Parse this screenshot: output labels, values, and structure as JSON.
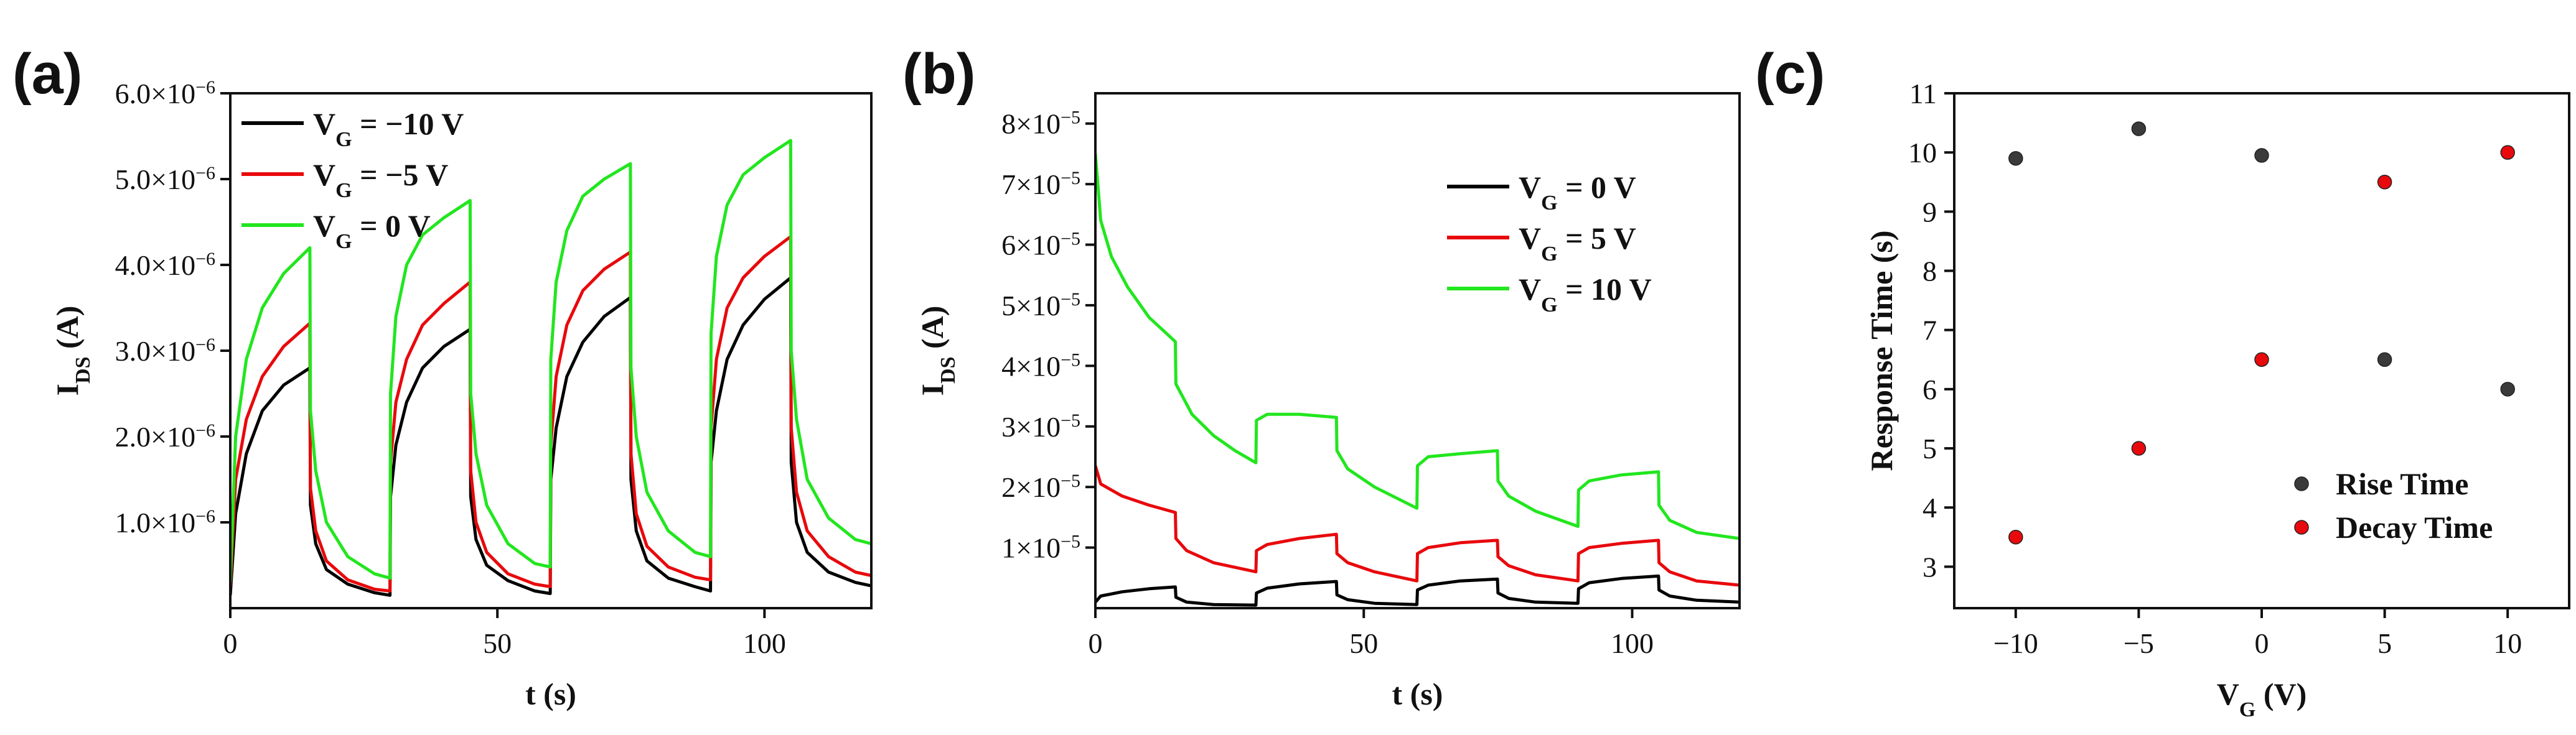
{
  "chart_data": [
    {
      "panel": "(a)",
      "type": "line",
      "xlabel": "t (s)",
      "ylabel": "IDS (A)",
      "ylabel_main": "I",
      "ylabel_sub": "DS",
      "ylabel_tail": " (A)",
      "xlim": [
        0,
        120
      ],
      "ylim": [
        0,
        6e-06
      ],
      "x_ticks": [
        0,
        50,
        100
      ],
      "x_tick_labels": [
        "0",
        "50",
        "100"
      ],
      "y_ticks": [
        1e-06,
        2e-06,
        3e-06,
        4e-06,
        5e-06,
        6e-06
      ],
      "y_tick_labels": [
        {
          "mant": "1.0×10",
          "exp": "−6"
        },
        {
          "mant": "2.0×10",
          "exp": "−6"
        },
        {
          "mant": "3.0×10",
          "exp": "−6"
        },
        {
          "mant": "4.0×10",
          "exp": "−6"
        },
        {
          "mant": "5.0×10",
          "exp": "−6"
        },
        {
          "mant": "6.0×10",
          "exp": "−6"
        }
      ],
      "legend_position": "top-left",
      "series": [
        {
          "name": "VG = −10 V",
          "label_main": "V",
          "label_sub": "G",
          "label_tail": " = −10 V",
          "color": "#000000",
          "x": [
            0,
            1,
            3,
            6,
            10,
            14.9,
            15,
            16,
            18,
            22,
            27,
            29.9,
            30,
            31,
            33,
            36,
            40,
            44.9,
            45,
            46,
            48,
            52,
            57,
            59.9,
            60,
            61,
            63,
            66,
            70,
            74.9,
            75,
            76,
            78,
            82,
            87,
            89.9,
            90,
            91,
            93,
            96,
            100,
            104.9,
            105,
            106,
            108,
            112,
            117,
            120
          ],
          "y": [
            1.5e-07,
            1.1e-06,
            1.8e-06,
            2.3e-06,
            2.6e-06,
            2.8e-06,
            1.2e-06,
            7.5e-07,
            4.5e-07,
            2.8e-07,
            1.8e-07,
            1.5e-07,
            1.3e-06,
            1.9e-06,
            2.4e-06,
            2.8e-06,
            3.05e-06,
            3.25e-06,
            1.3e-06,
            8e-07,
            5e-07,
            3.2e-07,
            2e-07,
            1.7e-07,
            1.5e-06,
            2.1e-06,
            2.7e-06,
            3.1e-06,
            3.4e-06,
            3.62e-06,
            1.5e-06,
            9e-07,
            5.5e-07,
            3.5e-07,
            2.5e-07,
            2e-07,
            1.7e-06,
            2.3e-06,
            2.9e-06,
            3.3e-06,
            3.6e-06,
            3.85e-06,
            1.7e-06,
            1e-06,
            6.5e-07,
            4.2e-07,
            3e-07,
            2.6e-07
          ]
        },
        {
          "name": "VG = −5 V",
          "label_main": "V",
          "label_sub": "G",
          "label_tail": " = −5 V",
          "color": "#e8090c",
          "x": [
            0,
            1,
            3,
            6,
            10,
            14.9,
            15,
            16,
            18,
            22,
            27,
            29.9,
            30,
            31,
            33,
            36,
            40,
            44.9,
            45,
            46,
            48,
            52,
            57,
            59.9,
            60,
            61,
            63,
            66,
            70,
            74.9,
            75,
            76,
            78,
            82,
            87,
            89.9,
            90,
            91,
            93,
            96,
            100,
            104.9,
            105,
            106,
            108,
            112,
            117,
            120
          ],
          "y": [
            2.5e-07,
            1.5e-06,
            2.2e-06,
            2.7e-06,
            3.05e-06,
            3.32e-06,
            1.4e-06,
            9e-07,
            5.5e-07,
            3.3e-07,
            2.2e-07,
            2e-07,
            1.7e-06,
            2.4e-06,
            2.9e-06,
            3.3e-06,
            3.55e-06,
            3.8e-06,
            1.6e-06,
            1e-06,
            6.5e-07,
            4e-07,
            2.8e-07,
            2.5e-07,
            1.9e-06,
            2.7e-06,
            3.3e-06,
            3.7e-06,
            3.95e-06,
            4.15e-06,
            1.8e-06,
            1.1e-06,
            7.2e-07,
            4.8e-07,
            3.6e-07,
            3.3e-07,
            2.1e-06,
            2.9e-06,
            3.5e-06,
            3.85e-06,
            4.1e-06,
            4.33e-06,
            2.1e-06,
            1.35e-06,
            9e-07,
            6e-07,
            4.2e-07,
            3.8e-07
          ]
        },
        {
          "name": "VG = 0 V",
          "label_main": "V",
          "label_sub": "G",
          "label_tail": " = 0 V",
          "color": "#22e61e",
          "x": [
            0,
            1,
            3,
            6,
            10,
            14.9,
            15,
            16,
            18,
            22,
            27,
            29.9,
            30,
            31,
            33,
            36,
            40,
            44.9,
            45,
            46,
            48,
            52,
            57,
            59.9,
            60,
            61,
            63,
            66,
            70,
            74.9,
            75,
            76,
            78,
            82,
            87,
            89.9,
            90,
            91,
            93,
            96,
            100,
            104.9,
            105,
            106,
            108,
            112,
            117,
            120
          ],
          "y": [
            3e-07,
            2e-06,
            2.9e-06,
            3.5e-06,
            3.9e-06,
            4.2e-06,
            2.3e-06,
            1.6e-06,
            1e-06,
            6e-07,
            4e-07,
            3.5e-07,
            2.5e-06,
            3.4e-06,
            4e-06,
            4.35e-06,
            4.55e-06,
            4.75e-06,
            2.5e-06,
            1.8e-06,
            1.2e-06,
            7.5e-07,
            5.2e-07,
            4.8e-07,
            2.9e-06,
            3.8e-06,
            4.4e-06,
            4.8e-06,
            5e-06,
            5.18e-06,
            2.8e-06,
            2e-06,
            1.35e-06,
            9e-07,
            6.5e-07,
            6e-07,
            3.2e-06,
            4.1e-06,
            4.7e-06,
            5.05e-06,
            5.25e-06,
            5.45e-06,
            3e-06,
            2.2e-06,
            1.5e-06,
            1.05e-06,
            8e-07,
            7.5e-07
          ]
        }
      ]
    },
    {
      "panel": "(b)",
      "type": "line",
      "xlabel": "t (s)",
      "ylabel": "IDS (A)",
      "ylabel_main": "I",
      "ylabel_sub": "DS",
      "ylabel_tail": " (A)",
      "xlim": [
        0,
        120
      ],
      "ylim": [
        0,
        8.5e-05
      ],
      "x_ticks": [
        0,
        50,
        100
      ],
      "x_tick_labels": [
        "0",
        "50",
        "100"
      ],
      "y_ticks": [
        1e-05,
        2e-05,
        3e-05,
        4e-05,
        5e-05,
        6e-05,
        7e-05,
        8e-05
      ],
      "y_tick_labels": [
        {
          "mant": "1×10",
          "exp": "−5"
        },
        {
          "mant": "2×10",
          "exp": "−5"
        },
        {
          "mant": "3×10",
          "exp": "−5"
        },
        {
          "mant": "4×10",
          "exp": "−5"
        },
        {
          "mant": "5×10",
          "exp": "−5"
        },
        {
          "mant": "6×10",
          "exp": "−5"
        },
        {
          "mant": "7×10",
          "exp": "−5"
        },
        {
          "mant": "8×10",
          "exp": "−5"
        }
      ],
      "legend_position": "top-right",
      "series": [
        {
          "name": "VG = 0 V",
          "label_main": "V",
          "label_sub": "G",
          "label_tail": " = 0 V",
          "color": "#000000",
          "x": [
            0,
            1,
            5,
            10,
            14.9,
            15,
            17,
            22,
            29.9,
            30,
            32,
            38,
            44.9,
            45,
            47,
            52,
            59.9,
            60,
            62,
            68,
            74.9,
            75,
            77,
            82,
            89.9,
            90,
            92,
            98,
            104.9,
            105,
            107,
            112,
            120
          ],
          "y": [
            1e-06,
            2e-06,
            2.7e-06,
            3.2e-06,
            3.5e-06,
            1.8e-06,
            1e-06,
            6e-07,
            5e-07,
            2.5e-06,
            3.3e-06,
            4e-06,
            4.4e-06,
            2.2e-06,
            1.4e-06,
            8e-07,
            6e-07,
            3e-06,
            3.8e-06,
            4.5e-06,
            4.8e-06,
            2.5e-06,
            1.6e-06,
            1e-06,
            8e-07,
            3.2e-06,
            4.2e-06,
            4.9e-06,
            5.3e-06,
            3e-06,
            2e-06,
            1.3e-06,
            1e-06
          ]
        },
        {
          "name": "VG = 5 V",
          "label_main": "V",
          "label_sub": "G",
          "label_tail": " = 5 V",
          "color": "#e8090c",
          "x": [
            0,
            1,
            5,
            10,
            14.9,
            15,
            17,
            22,
            29.9,
            30,
            32,
            38,
            44.9,
            45,
            47,
            52,
            59.9,
            60,
            62,
            68,
            74.9,
            75,
            77,
            82,
            89.9,
            90,
            92,
            98,
            104.9,
            105,
            107,
            112,
            120
          ],
          "y": [
            2.35e-05,
            2.05e-05,
            1.85e-05,
            1.7e-05,
            1.58e-05,
            1.15e-05,
            9.5e-06,
            7.5e-06,
            6e-06,
            9.5e-06,
            1.05e-05,
            1.15e-05,
            1.22e-05,
            9e-06,
            7.5e-06,
            6e-06,
            4.5e-06,
            9e-06,
            1e-05,
            1.08e-05,
            1.12e-05,
            8.5e-06,
            7e-06,
            5.5e-06,
            4.5e-06,
            9e-06,
            1e-05,
            1.07e-05,
            1.12e-05,
            7.5e-06,
            6e-06,
            4.5e-06,
            3.8e-06
          ]
        },
        {
          "name": "VG = 10 V",
          "label_main": "V",
          "label_sub": "G",
          "label_tail": " = 10 V",
          "color": "#22e61e",
          "x": [
            0,
            1,
            3,
            6,
            10,
            14.9,
            15,
            18,
            22,
            26,
            29.9,
            30,
            32,
            38,
            44.9,
            45,
            47,
            52,
            59.9,
            60,
            62,
            68,
            74.9,
            75,
            77,
            82,
            89.9,
            90,
            92,
            98,
            104.9,
            105,
            107,
            112,
            120
          ],
          "y": [
            7.5e-05,
            6.4e-05,
            5.8e-05,
            5.3e-05,
            4.8e-05,
            4.4e-05,
            3.7e-05,
            3.2e-05,
            2.85e-05,
            2.6e-05,
            2.4e-05,
            3.1e-05,
            3.2e-05,
            3.2e-05,
            3.15e-05,
            2.6e-05,
            2.3e-05,
            2e-05,
            1.65e-05,
            2.35e-05,
            2.5e-05,
            2.55e-05,
            2.6e-05,
            2.1e-05,
            1.85e-05,
            1.6e-05,
            1.35e-05,
            1.95e-05,
            2.1e-05,
            2.2e-05,
            2.25e-05,
            1.7e-05,
            1.45e-05,
            1.25e-05,
            1.15e-05
          ]
        }
      ]
    },
    {
      "panel": "(c)",
      "type": "scatter",
      "xlabel": "VG (V)",
      "xlabel_main": "V",
      "xlabel_sub": "G",
      "xlabel_tail": " (V)",
      "ylabel": "Response Time (s)",
      "xlim": [
        -12.5,
        12.5
      ],
      "ylim": [
        2.3,
        11
      ],
      "x_ticks": [
        -10,
        -5,
        0,
        5,
        10
      ],
      "x_tick_labels": [
        "−10",
        "−5",
        "0",
        "5",
        "10"
      ],
      "y_ticks": [
        3,
        4,
        5,
        6,
        7,
        8,
        9,
        10,
        11
      ],
      "y_tick_labels": [
        "3",
        "4",
        "5",
        "6",
        "7",
        "8",
        "9",
        "10",
        "11"
      ],
      "legend_position": "bottom-right",
      "series": [
        {
          "name": "Rise Time",
          "color": "#3a3a3a",
          "x": [
            -10,
            -5,
            0,
            5,
            10
          ],
          "y": [
            9.9,
            10.4,
            9.95,
            6.5,
            6.0
          ]
        },
        {
          "name": "Decay Time",
          "color": "#e8090c",
          "x": [
            -10,
            -5,
            0,
            5,
            10
          ],
          "y": [
            3.5,
            5.0,
            6.5,
            9.5,
            10.0
          ]
        }
      ]
    }
  ]
}
